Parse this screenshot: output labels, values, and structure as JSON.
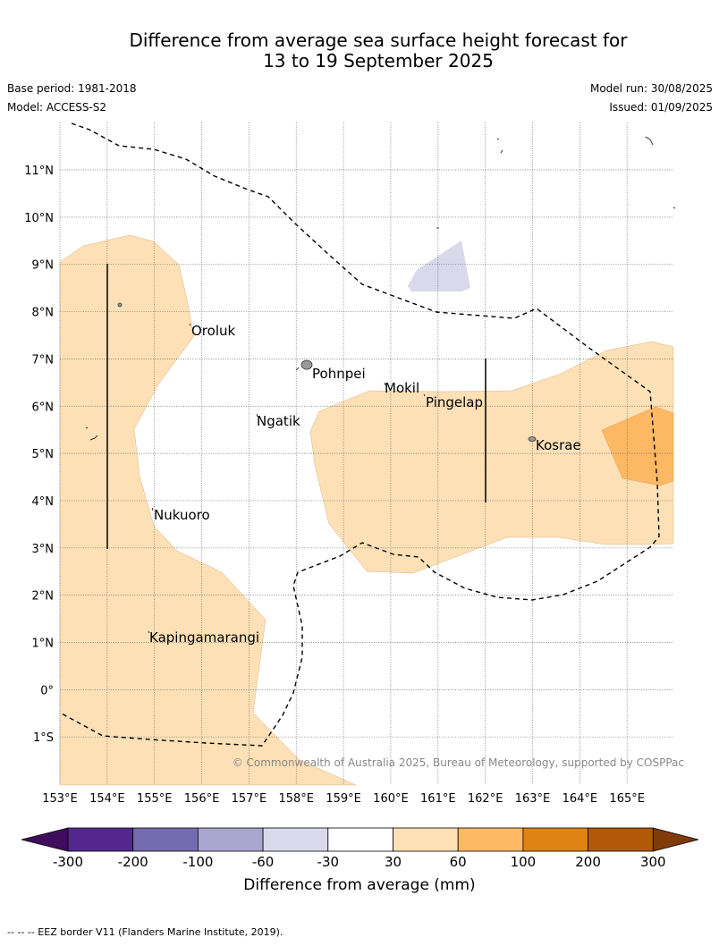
{
  "header": {
    "title_line1": "Difference from average sea surface height forecast for",
    "title_line2": "13 to 19 September 2025",
    "base_period": "Base period: 1981-2018",
    "model": "Model: ACCESS-S2",
    "model_run": "Model run: 30/08/2025",
    "issued": "Issued: 01/09/2025"
  },
  "map": {
    "lat_labels": [
      "11°N",
      "10°N",
      "9°N",
      "8°N",
      "7°N",
      "6°N",
      "5°N",
      "4°N",
      "3°N",
      "2°N",
      "1°N",
      "0°",
      "1°S"
    ],
    "lon_labels": [
      "153°E",
      "154°E",
      "155°E",
      "156°E",
      "157°E",
      "158°E",
      "159°E",
      "160°E",
      "161°E",
      "162°E",
      "163°E",
      "164°E",
      "165°E"
    ],
    "places": [
      "Oroluk",
      "Pohnpei",
      "Mokil",
      "Pingelap",
      "Ngatik",
      "Kosrae",
      "Nukuoro",
      "Kapingamarangi"
    ],
    "copyright": "© Commonwealth of Australia 2025, Bureau of Meteorology, supported by COSPPac"
  },
  "colorbar": {
    "tick_labels": [
      "-300",
      "-200",
      "-100",
      "-60",
      "-30",
      "30",
      "60",
      "100",
      "200",
      "300"
    ],
    "colors": [
      "#3f0d5c",
      "#54278f",
      "#756bb1",
      "#aba6cf",
      "#d9d9eb",
      "#ffffff",
      "#fde0b5",
      "#fdb863",
      "#e08214",
      "#b35806",
      "#7f3b08"
    ],
    "title": "Difference from average (mm)"
  },
  "footer": {
    "note": "--  --  -- EEZ border V11 (Flanders Marine Institute, 2019)."
  }
}
